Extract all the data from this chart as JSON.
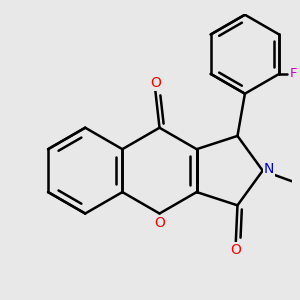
{
  "bg_color": "#e8e8e8",
  "bond_color": "#000000",
  "bond_width": 1.8,
  "atom_colors": {
    "O": "#ff0000",
    "N": "#0000cc",
    "F": "#cc00cc",
    "C": "#000000"
  },
  "figsize": [
    3.0,
    3.0
  ],
  "dpi": 100
}
